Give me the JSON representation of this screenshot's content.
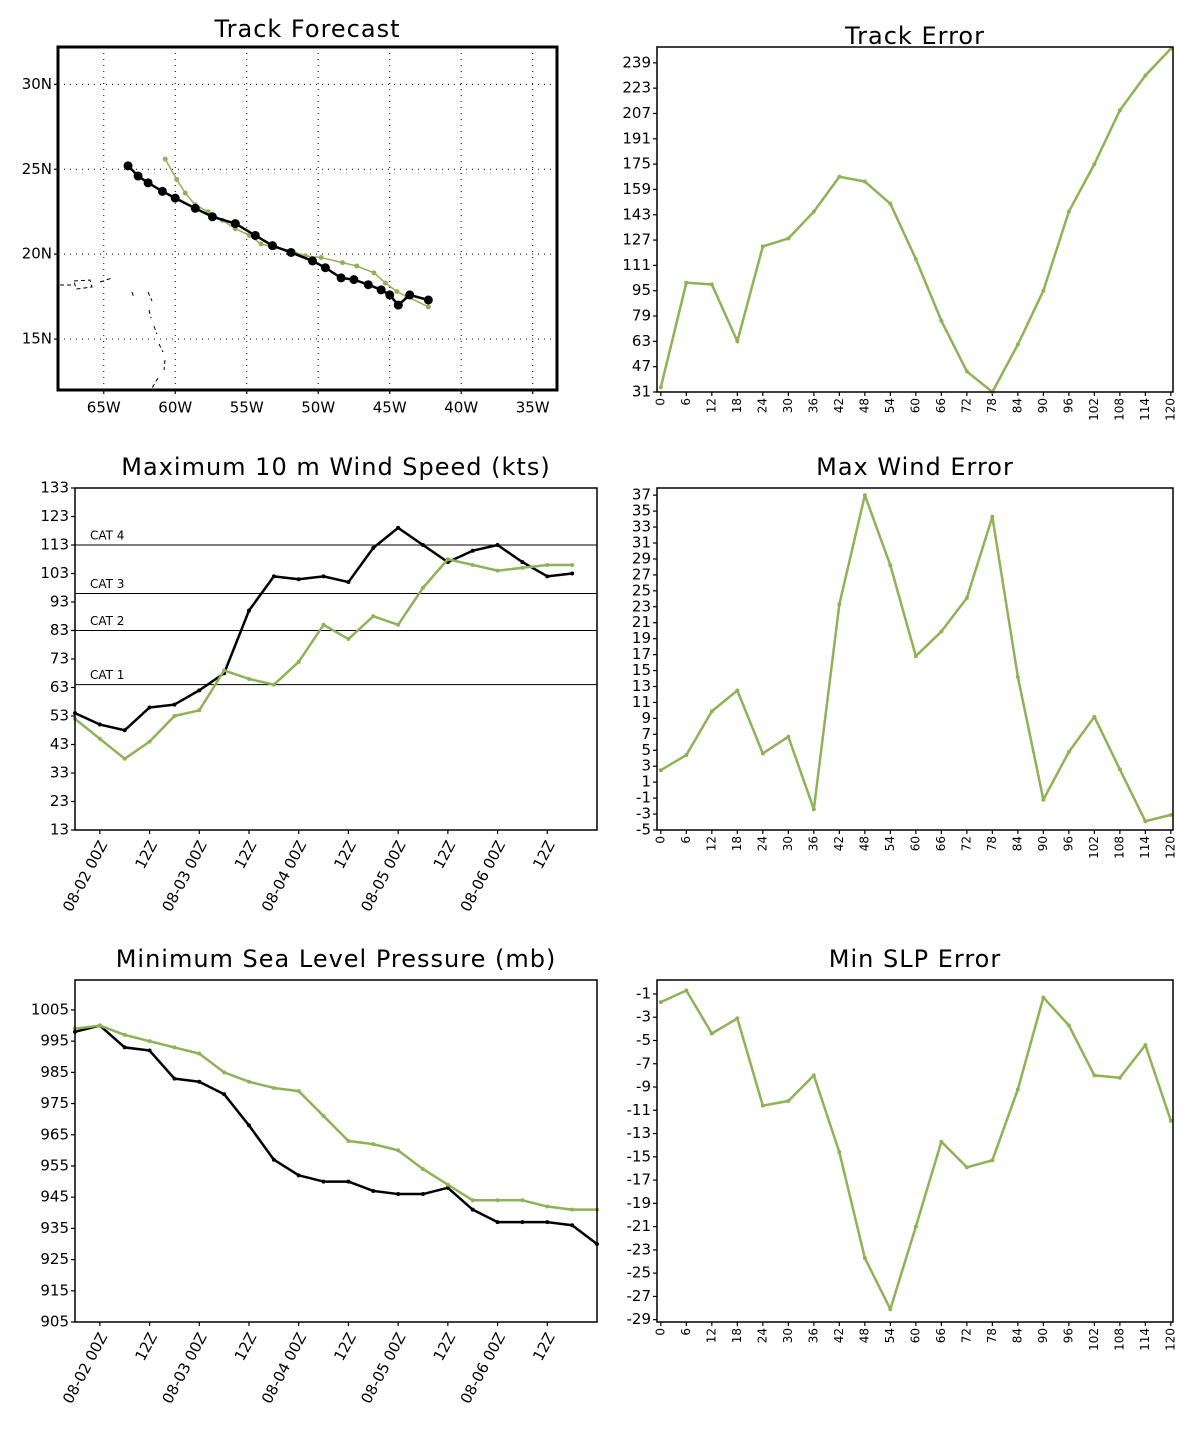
{
  "chart_data": [
    {
      "type": "line",
      "title": "Track Forecast",
      "xlim": [
        -68.2,
        -33.3
      ],
      "ylim": [
        12.0,
        32.2
      ],
      "grid": true,
      "xticks": [
        {
          "value": -65,
          "label": "65W"
        },
        {
          "value": -60,
          "label": "60W"
        },
        {
          "value": -55,
          "label": "55W"
        },
        {
          "value": -50,
          "label": "50W"
        },
        {
          "value": -45,
          "label": "45W"
        },
        {
          "value": -40,
          "label": "40W"
        },
        {
          "value": -35,
          "label": "35W"
        }
      ],
      "yticks": [
        {
          "value": 15,
          "label": "15N"
        },
        {
          "value": 20,
          "label": "20N"
        },
        {
          "value": 25,
          "label": "25N"
        },
        {
          "value": 30,
          "label": "30N"
        }
      ],
      "series": [
        {
          "color": "#8db356",
          "x": [
            -60.7,
            -59.9,
            -59.3,
            -58.6,
            -57.7,
            -56.7,
            -55.8,
            -54.8,
            -54.0,
            -53.0,
            -51.9,
            -50.9,
            -49.8,
            -48.3,
            -47.3,
            -46.1,
            -45.3,
            -44.5,
            -43.8,
            -42.3
          ],
          "values": [
            25.6,
            24.4,
            23.6,
            22.9,
            22.5,
            22.0,
            21.5,
            21.1,
            20.6,
            20.4,
            20.2,
            19.9,
            19.8,
            19.5,
            19.3,
            18.9,
            18.3,
            17.8,
            17.5,
            16.9
          ]
        },
        {
          "color": "#000000",
          "x": [
            -63.3,
            -62.6,
            -61.9,
            -60.9,
            -60.0,
            -58.6,
            -57.4,
            -55.8,
            -54.4,
            -53.2,
            -51.9,
            -50.4,
            -49.5,
            -48.4,
            -47.5,
            -46.5,
            -45.6,
            -45.0,
            -44.4,
            -43.6,
            -42.3
          ],
          "values": [
            25.2,
            24.6,
            24.2,
            23.7,
            23.3,
            22.7,
            22.2,
            21.8,
            21.1,
            20.5,
            20.1,
            19.6,
            19.2,
            18.6,
            18.5,
            18.2,
            17.9,
            17.6,
            17.0,
            17.6,
            17.3
          ]
        }
      ]
    },
    {
      "type": "line",
      "title": "Track Error",
      "x": [
        0,
        6,
        12,
        18,
        24,
        30,
        36,
        42,
        48,
        54,
        60,
        66,
        72,
        78,
        84,
        90,
        96,
        102,
        108,
        114,
        120
      ],
      "xlim": [
        -0.9,
        120.5
      ],
      "ylim": [
        31,
        249
      ],
      "xticks": [
        0,
        6,
        12,
        18,
        24,
        30,
        36,
        42,
        48,
        54,
        60,
        66,
        72,
        78,
        84,
        90,
        96,
        102,
        108,
        114,
        120
      ],
      "yticks": [
        31,
        47,
        63,
        79,
        95,
        111,
        127,
        143,
        159,
        175,
        191,
        207,
        223,
        239
      ],
      "series": [
        {
          "color": "#8db356",
          "values": [
            34,
            100,
            99,
            63,
            123,
            128,
            145,
            167,
            164,
            150,
            115,
            76,
            44,
            31,
            61,
            95,
            145,
            175,
            209,
            231,
            248
          ]
        }
      ]
    },
    {
      "type": "line",
      "title": "Maximum 10 m Wind Speed (kts)",
      "categories": [
        null,
        "08-02 00Z",
        null,
        "12Z",
        null,
        "08-03 00Z",
        null,
        "12Z",
        null,
        "08-04 00Z",
        null,
        "12Z",
        null,
        "08-05 00Z",
        null,
        "12Z",
        null,
        "08-06 00Z",
        null,
        "12Z",
        null,
        null
      ],
      "ylim": [
        13,
        133
      ],
      "yticks": [
        13,
        23,
        33,
        43,
        53,
        63,
        73,
        83,
        93,
        103,
        113,
        123,
        133
      ],
      "reference_lines": [
        {
          "label": "CAT 1",
          "value": 64
        },
        {
          "label": "CAT 2",
          "value": 83
        },
        {
          "label": "CAT 3",
          "value": 96
        },
        {
          "label": "CAT 4",
          "value": 113
        }
      ],
      "series": [
        {
          "color": "#000000",
          "values": [
            54,
            50,
            48,
            56,
            57,
            62,
            68,
            90,
            102,
            101,
            102,
            100,
            112,
            119,
            113,
            107,
            111,
            113,
            107,
            102,
            103,
            null
          ]
        },
        {
          "color": "#8db356",
          "values": [
            52,
            45,
            38,
            44,
            53,
            55,
            69,
            66,
            64,
            72,
            85,
            80,
            88,
            85,
            98,
            108,
            106,
            104,
            105,
            106,
            106,
            null
          ]
        }
      ]
    },
    {
      "type": "line",
      "title": "Max Wind Error",
      "x": [
        0,
        6,
        12,
        18,
        24,
        30,
        36,
        42,
        48,
        54,
        60,
        66,
        72,
        78,
        84,
        90,
        96,
        102,
        108,
        114,
        120
      ],
      "xlim": [
        -0.9,
        120.5
      ],
      "ylim": [
        -5,
        37.9
      ],
      "xticks": [
        0,
        6,
        12,
        18,
        24,
        30,
        36,
        42,
        48,
        54,
        60,
        66,
        72,
        78,
        84,
        90,
        96,
        102,
        108,
        114,
        120
      ],
      "yticks": [
        -5,
        -3,
        -1,
        1,
        3,
        5,
        7,
        9,
        11,
        13,
        15,
        17,
        19,
        21,
        23,
        25,
        27,
        29,
        31,
        33,
        35,
        37
      ],
      "series": [
        {
          "color": "#8db356",
          "values": [
            2.5,
            4.4,
            9.9,
            12.5,
            4.6,
            6.7,
            -2.4,
            23.3,
            37,
            28.2,
            16.8,
            19.9,
            24.1,
            34.3,
            14.2,
            -1.2,
            4.8,
            9.2,
            2.6,
            -3.9,
            -3.1
          ]
        }
      ]
    },
    {
      "type": "line",
      "title": "Minimum Sea Level Pressure (mb)",
      "categories": [
        null,
        "08-02 00Z",
        null,
        "12Z",
        null,
        "08-03 00Z",
        null,
        "12Z",
        null,
        "08-04 00Z",
        null,
        "12Z",
        null,
        "08-05 00Z",
        null,
        "12Z",
        null,
        "08-06 00Z",
        null,
        "12Z",
        null,
        null
      ],
      "ylim": [
        905,
        1014.6
      ],
      "yticks": [
        905,
        915,
        925,
        935,
        945,
        955,
        965,
        975,
        985,
        995,
        1005
      ],
      "series": [
        {
          "color": "#000000",
          "values": [
            998,
            1000,
            993,
            992,
            983,
            982,
            978,
            968,
            957,
            952,
            950,
            950,
            947,
            946,
            946,
            948,
            941,
            937,
            937,
            937,
            936,
            930
          ]
        },
        {
          "color": "#8db356",
          "values": [
            999,
            1000,
            997,
            995,
            993,
            991,
            985,
            982,
            980,
            979,
            971,
            963,
            962,
            960,
            954,
            949,
            944,
            944,
            944,
            942,
            941,
            941
          ]
        }
      ]
    },
    {
      "type": "line",
      "title": "Min SLP Error",
      "x": [
        0,
        6,
        12,
        18,
        24,
        30,
        36,
        42,
        48,
        54,
        60,
        66,
        72,
        78,
        84,
        90,
        96,
        102,
        108,
        114,
        120
      ],
      "xlim": [
        -0.9,
        120.5
      ],
      "ylim": [
        -29.2,
        0.2
      ],
      "xticks": [
        0,
        6,
        12,
        18,
        24,
        30,
        36,
        42,
        48,
        54,
        60,
        66,
        72,
        78,
        84,
        90,
        96,
        102,
        108,
        114,
        120
      ],
      "yticks": [
        -29,
        -27,
        -25,
        -23,
        -21,
        -19,
        -17,
        -15,
        -13,
        -11,
        -9,
        -7,
        -5,
        -3,
        -1
      ],
      "series": [
        {
          "color": "#8db356",
          "values": [
            -1.7,
            -0.7,
            -4.4,
            -3.1,
            -10.6,
            -10.2,
            -8.0,
            -14.6,
            -23.7,
            -28.1,
            -21.0,
            -13.7,
            -15.9,
            -15.3,
            -9.2,
            -1.3,
            -3.7,
            -8.0,
            -8.2,
            -5.4,
            -11.9
          ]
        }
      ]
    }
  ]
}
